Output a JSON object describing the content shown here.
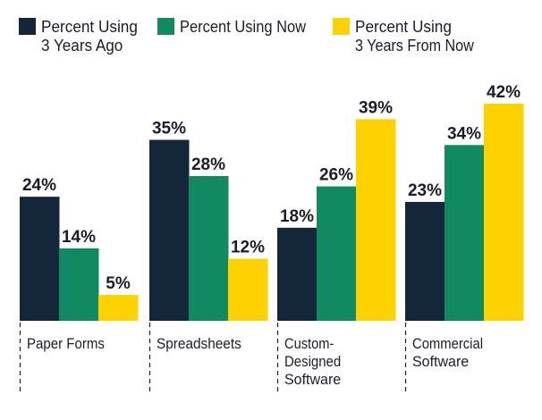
{
  "chart_data": {
    "type": "bar",
    "title": "",
    "xlabel": "",
    "ylabel": "",
    "ylim": [
      0,
      42
    ],
    "grid": false,
    "legend_position": "top",
    "value_format": "{v}%",
    "categories": [
      [
        "Paper Forms"
      ],
      [
        "Spreadsheets"
      ],
      [
        "Custom-",
        "Designed",
        "Software"
      ],
      [
        "Commercial",
        "Software"
      ]
    ],
    "series": [
      {
        "name": [
          "Percent Using",
          "3 Years Ago"
        ],
        "color": "#14263a",
        "values": [
          24,
          35,
          18,
          23
        ]
      },
      {
        "name": [
          "Percent Using Now"
        ],
        "color": "#118a62",
        "values": [
          14,
          28,
          26,
          34
        ]
      },
      {
        "name": [
          "Percent Using",
          "3 Years From Now"
        ],
        "color": "#fdd200",
        "values": [
          5,
          12,
          39,
          42
        ]
      }
    ]
  }
}
